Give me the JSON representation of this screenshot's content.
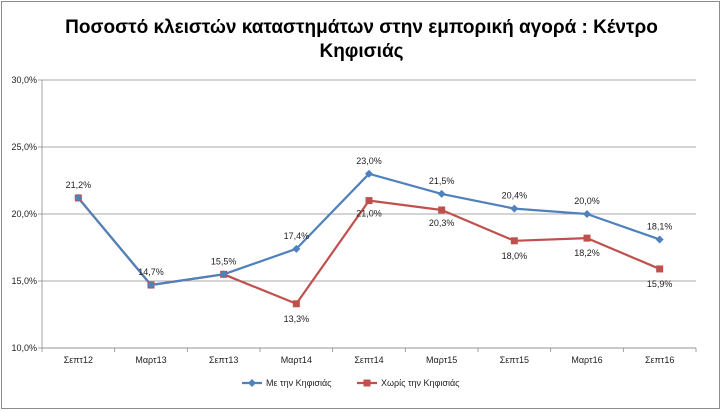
{
  "chart_data": {
    "type": "line",
    "title_lines": [
      "Ποσοστό κλειστών καταστημάτων στην εμπορική αγορά : Κέντρο",
      "Κηφισιάς"
    ],
    "categories": [
      "Σεπτ12",
      "Μαρτ13",
      "Σεπτ13",
      "Μαρτ14",
      "Σεπτ14",
      "Μαρτ15",
      "Σεπτ15",
      "Μαρτ16",
      "Σεπτ16"
    ],
    "ylim": [
      10,
      30
    ],
    "yticks": [
      10,
      15,
      20,
      25,
      30
    ],
    "ytick_labels": [
      "10,0%",
      "15,0%",
      "20,0%",
      "25,0%",
      "30,0%"
    ],
    "grid": true,
    "legend_position": "bottom",
    "series": [
      {
        "name": "Με την Κηφισιάς",
        "color": "#4f81bd",
        "marker": "diamond",
        "values": [
          21.2,
          14.7,
          15.5,
          17.4,
          23.0,
          21.5,
          20.4,
          20.0,
          18.1
        ],
        "labels": [
          "21,2%",
          "14,7%",
          "15,5%",
          "17,4%",
          "23,0%",
          "21,5%",
          "20,4%",
          "20,0%",
          "18,1%"
        ],
        "show_labels": [
          true,
          true,
          true,
          true,
          true,
          true,
          true,
          true,
          true
        ]
      },
      {
        "name": "Χωρίς την Κηφισιάς",
        "color": "#c0504d",
        "marker": "square",
        "values": [
          21.2,
          14.7,
          15.5,
          13.3,
          21.0,
          20.3,
          18.0,
          18.2,
          15.9
        ],
        "labels": [
          "21,2%",
          "14,7%",
          "15,5%",
          "13,3%",
          "21,0%",
          "20,3%",
          "18,0%",
          "18,2%",
          "15,9%"
        ],
        "show_labels": [
          false,
          false,
          false,
          true,
          true,
          true,
          true,
          true,
          true
        ]
      }
    ]
  }
}
